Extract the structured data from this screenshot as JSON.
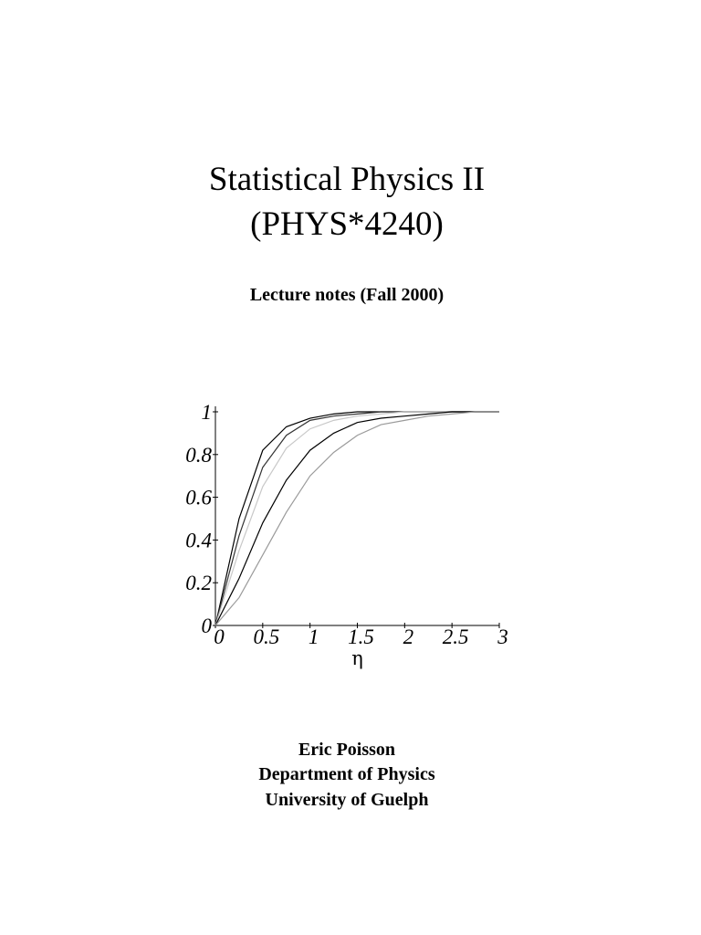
{
  "document": {
    "title_line1": "Statistical Physics II",
    "title_line2": "(PHYS*4240)",
    "subtitle": "Lecture notes (Fall 2000)",
    "author": "Eric Poisson",
    "department": "Department of Physics",
    "university": "University of Guelph"
  },
  "chart_data": {
    "type": "line",
    "x_label": "η",
    "x": [
      0,
      0.25,
      0.5,
      0.75,
      1,
      1.25,
      1.5,
      1.75,
      2,
      2.25,
      2.5,
      2.75,
      3
    ],
    "series": [
      {
        "color": "#000000",
        "values": [
          0,
          0.5,
          0.82,
          0.93,
          0.97,
          0.99,
          1,
          1,
          1,
          1,
          1,
          1,
          1
        ]
      },
      {
        "color": "#333333",
        "values": [
          0,
          0.42,
          0.74,
          0.89,
          0.96,
          0.98,
          0.99,
          1,
          1,
          1,
          1,
          1,
          1
        ]
      },
      {
        "color": "#c8c8c8",
        "values": [
          0,
          0.35,
          0.65,
          0.83,
          0.92,
          0.96,
          0.98,
          0.99,
          1,
          1,
          1,
          1,
          1
        ]
      },
      {
        "color": "#000000",
        "values": [
          0,
          0.22,
          0.48,
          0.68,
          0.82,
          0.9,
          0.95,
          0.97,
          0.98,
          0.99,
          1,
          1,
          1
        ]
      },
      {
        "color": "#9a9a9a",
        "values": [
          0,
          0.13,
          0.33,
          0.53,
          0.7,
          0.81,
          0.89,
          0.94,
          0.96,
          0.98,
          0.99,
          1,
          1
        ]
      }
    ],
    "xlim": [
      0,
      3
    ],
    "ylim": [
      0,
      1
    ],
    "xticks": [
      0,
      0.5,
      1,
      1.5,
      2,
      2.5,
      3
    ],
    "yticks": [
      0,
      0.2,
      0.4,
      0.6,
      0.8,
      1
    ]
  }
}
